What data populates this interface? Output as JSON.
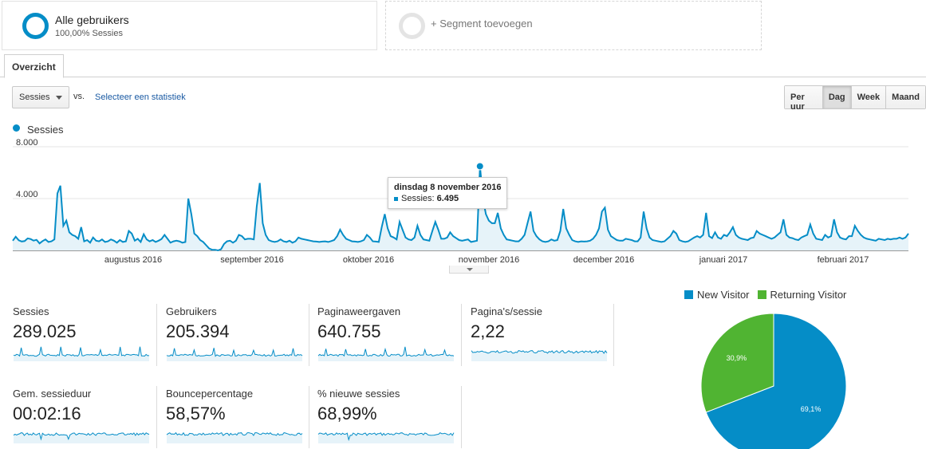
{
  "segments": [
    {
      "title": "Alle gebruikers",
      "subtitle": "100,00% Sessies"
    },
    {
      "title": "+ Segment toevoegen"
    }
  ],
  "tabs": [
    {
      "label": "Overzicht"
    }
  ],
  "metric_selector": {
    "value": "Sessies",
    "vs": "vs.",
    "select_link": "Selecteer een statistiek"
  },
  "granularity": {
    "options": [
      "Per uur",
      "Dag",
      "Week",
      "Maand"
    ],
    "active": "Dag"
  },
  "chart_legend": {
    "label": "Sessies",
    "color": "#058dc7"
  },
  "tooltip": {
    "date": "dinsdag 8 november 2016",
    "series": "Sessies:",
    "value": "6.495"
  },
  "chart_data": {
    "type": "area",
    "series": [
      {
        "name": "Sessies",
        "color": "#058dc7",
        "values": [
          750,
          1050,
          780,
          690,
          720,
          930,
          880,
          760,
          820,
          540,
          720,
          850,
          650,
          700,
          850,
          4400,
          5000,
          1900,
          2300,
          1400,
          1200,
          1100,
          900,
          1800,
          700,
          800,
          600,
          1000,
          750,
          700,
          850,
          650,
          700,
          850,
          750,
          600,
          800,
          650,
          700,
          1500,
          1300,
          750,
          900,
          650,
          1250,
          850,
          700,
          800,
          650,
          750,
          880,
          1200,
          900,
          600,
          700,
          750,
          700,
          600,
          650,
          4000,
          2800,
          1300,
          1100,
          800,
          650,
          400,
          150,
          50,
          50,
          0,
          100,
          500,
          700,
          750,
          600,
          750,
          1200,
          1100,
          850,
          900,
          900,
          850,
          3400,
          5200,
          2100,
          1200,
          800,
          700,
          650,
          700,
          850,
          700,
          650,
          750,
          600,
          700,
          1000,
          900,
          850,
          800,
          750,
          700,
          680,
          650,
          680,
          700,
          650,
          720,
          800,
          1100,
          1600,
          1200,
          900,
          800,
          700,
          680,
          650,
          700,
          800,
          1200,
          1000,
          700,
          680,
          650,
          1800,
          2800,
          1700,
          1100,
          1000,
          850,
          2200,
          1600,
          1000,
          850,
          800,
          1000,
          1900,
          1200,
          850,
          800,
          750,
          1500,
          2200,
          1600,
          900,
          900,
          1000,
          1400,
          1100,
          950,
          800,
          750,
          800,
          850,
          650,
          700,
          750,
          6495,
          4000,
          2800,
          2300,
          2100,
          2100,
          2900,
          1700,
          1200,
          850,
          800,
          750,
          700,
          700,
          900,
          1200,
          2100,
          3000,
          1500,
          1100,
          850,
          700,
          650,
          700,
          850,
          750,
          800,
          1500,
          3200,
          1700,
          1200,
          800,
          700,
          650,
          700,
          680,
          700,
          750,
          900,
          1200,
          1700,
          3000,
          3300,
          1600,
          1100,
          950,
          800,
          750,
          750,
          900,
          850,
          800,
          700,
          700,
          1000,
          3000,
          1700,
          1000,
          800,
          750,
          700,
          650,
          700,
          900,
          1100,
          1500,
          1300,
          800,
          700,
          650,
          700,
          850,
          1000,
          1100,
          1000,
          1200,
          2900,
          1100,
          950,
          1400,
          1000,
          900,
          1200,
          1100,
          1400,
          1800,
          1200,
          1000,
          900,
          850,
          800,
          950,
          1000,
          1500,
          1300,
          1200,
          1100,
          1000,
          900,
          1000,
          1200,
          1400,
          2400,
          1200,
          1000,
          950,
          850,
          800,
          1000,
          1100,
          1200,
          2000,
          1300,
          900,
          850,
          800,
          1200,
          1000,
          1100,
          2400,
          1400,
          1000,
          900,
          850,
          1100,
          1100,
          1900,
          1500,
          1200,
          1000,
          900,
          850,
          800,
          750,
          900,
          850,
          800,
          900,
          850,
          900,
          900,
          1000,
          900,
          1000,
          1300
        ]
      }
    ],
    "x_labels": [
      "augustus 2016",
      "september 2016",
      "oktober 2016",
      "november 2016",
      "december 2016",
      "januari 2017",
      "februari 2017"
    ],
    "y_ticks": [
      "8.000",
      "4.000"
    ],
    "ylim": [
      0,
      8000
    ],
    "highlight": {
      "date": "dinsdag 8 november 2016",
      "value": 6495
    },
    "grid": true
  },
  "scorecards": [
    {
      "label": "Sessies",
      "value": "289.025"
    },
    {
      "label": "Gebruikers",
      "value": "205.394"
    },
    {
      "label": "Paginaweergaven",
      "value": "640.755"
    },
    {
      "label": "Pagina's/sessie",
      "value": "2,22"
    },
    {
      "label": "Gem. sessieduur",
      "value": "00:02:16"
    },
    {
      "label": "Bouncepercentage",
      "value": "58,57%"
    },
    {
      "label": "% nieuwe sessies",
      "value": "68,99%"
    }
  ],
  "pie": {
    "legend": [
      {
        "label": "New Visitor",
        "color": "#058dc7"
      },
      {
        "label": "Returning Visitor",
        "color": "#50b432"
      }
    ],
    "slices": [
      {
        "label": "69,1%",
        "value": 69.1,
        "color": "#058dc7"
      },
      {
        "label": "30,9%",
        "value": 30.9,
        "color": "#50b432"
      }
    ]
  }
}
